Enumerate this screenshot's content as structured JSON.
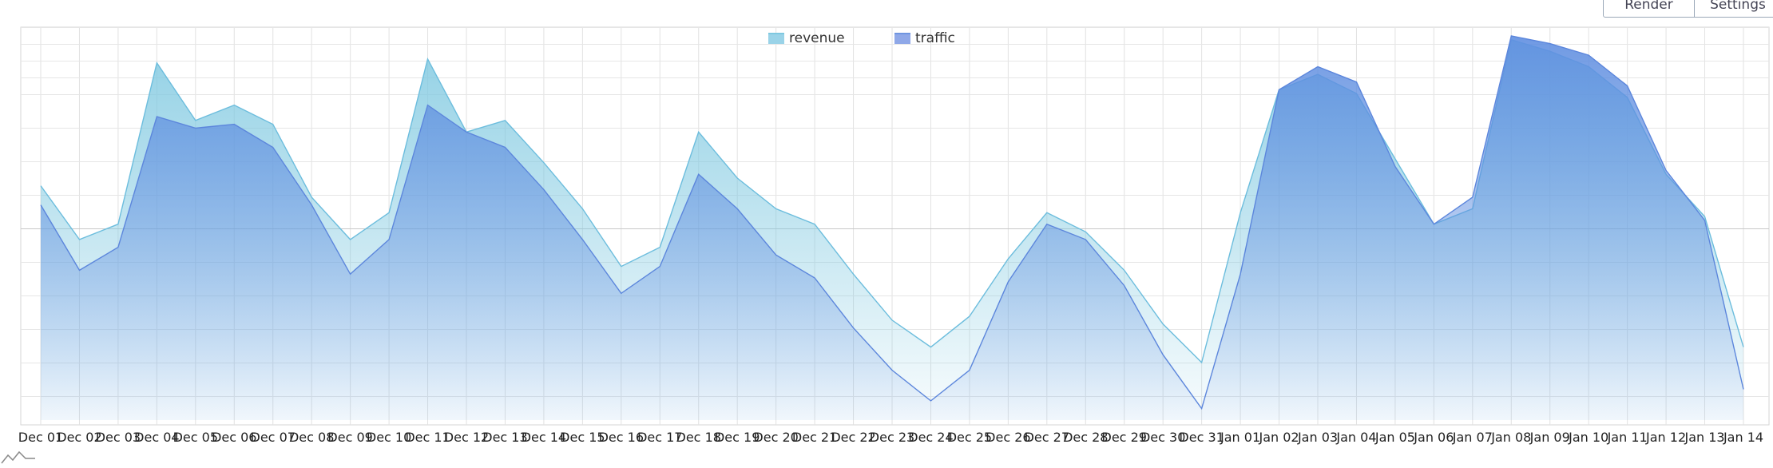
{
  "toolbar": {
    "render_label": "Render",
    "settings_label": "Settings"
  },
  "icons": {
    "brand": "mini-chart-icon"
  },
  "chart_data": {
    "type": "area",
    "title": "",
    "xlabel": "",
    "ylabel": "",
    "grid": true,
    "legend_position": "top-center",
    "categories": [
      "Dec 01",
      "Dec 02",
      "Dec 03",
      "Dec 04",
      "Dec 05",
      "Dec 06",
      "Dec 07",
      "Dec 08",
      "Dec 09",
      "Dec 10",
      "Dec 11",
      "Dec 12",
      "Dec 13",
      "Dec 14",
      "Dec 15",
      "Dec 16",
      "Dec 17",
      "Dec 18",
      "Dec 19",
      "Dec 20",
      "Dec 21",
      "Dec 22",
      "Dec 23",
      "Dec 24",
      "Dec 25",
      "Dec 26",
      "Dec 27",
      "Dec 28",
      "Dec 29",
      "Dec 30",
      "Dec 31",
      "Jan 01",
      "Jan 02",
      "Jan 03",
      "Jan 04",
      "Jan 05",
      "Jan 06",
      "Jan 07",
      "Jan 08",
      "Jan 09",
      "Jan 10",
      "Jan 11",
      "Jan 12",
      "Jan 13",
      "Jan 14"
    ],
    "ylim": [
      0,
      100
    ],
    "series": [
      {
        "name": "revenue",
        "color": "#7ec8e0",
        "values": [
          61,
          47,
          51,
          93,
          78,
          82,
          77,
          58,
          47,
          54,
          94,
          75,
          78,
          67,
          55,
          40,
          45,
          75,
          63,
          55,
          51,
          38,
          26,
          19,
          27,
          42,
          54,
          49,
          39,
          25,
          15,
          54,
          86,
          90,
          85,
          68,
          51,
          55,
          99,
          96,
          92,
          84,
          64,
          53,
          19
        ]
      },
      {
        "name": "traffic",
        "color": "#6f95e0",
        "values": [
          56,
          39,
          45,
          79,
          76,
          77,
          71,
          56,
          38,
          47,
          82,
          75,
          71,
          60,
          47,
          33,
          40,
          64,
          55,
          43,
          37,
          24,
          13,
          5,
          13,
          36,
          51,
          47,
          35,
          17,
          3,
          38,
          86,
          92,
          88,
          66,
          51,
          58,
          100,
          98,
          95,
          87,
          65,
          52,
          8
        ]
      }
    ]
  }
}
